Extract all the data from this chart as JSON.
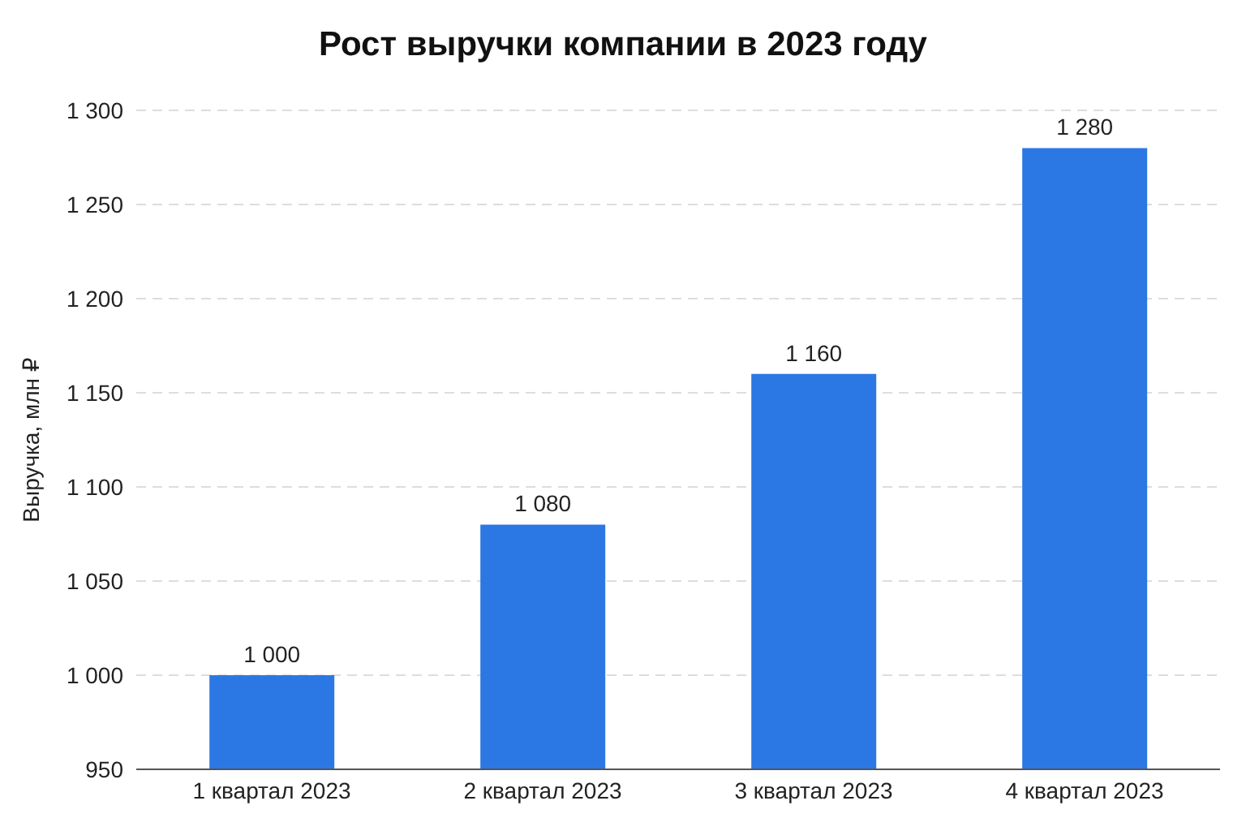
{
  "chart_data": {
    "type": "bar",
    "title": "Рост выручки компании в 2023 году",
    "ylabel": "Выручка, млн ₽",
    "categories": [
      "1 квартал 2023",
      "2 квартал 2023",
      "3 квартал 2023",
      "4 квартал 2023"
    ],
    "values": [
      1000,
      1080,
      1160,
      1280
    ],
    "value_labels": [
      "1 000",
      "1 080",
      "1 160",
      "1 280"
    ],
    "color": "#2b78e4",
    "ylim": [
      950,
      1300
    ],
    "yticks": [
      {
        "value": 950,
        "label": "950"
      },
      {
        "value": 1000,
        "label": "1 000"
      },
      {
        "value": 1050,
        "label": "1 050"
      },
      {
        "value": 1100,
        "label": "1 100"
      },
      {
        "value": 1150,
        "label": "1 150"
      },
      {
        "value": 1200,
        "label": "1 200"
      },
      {
        "value": 1250,
        "label": "1 250"
      },
      {
        "value": 1300,
        "label": "1 300"
      }
    ],
    "grid": "y",
    "legend": false
  }
}
